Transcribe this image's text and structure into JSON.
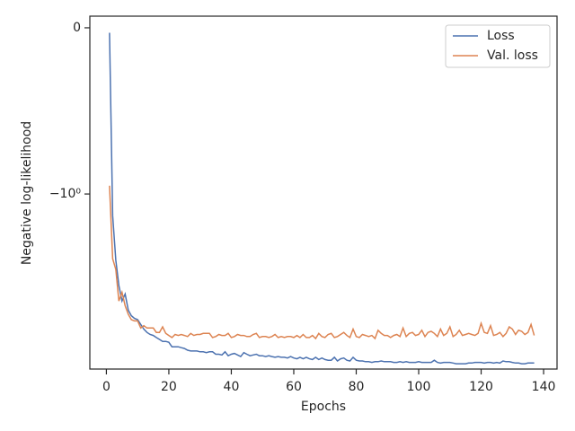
{
  "chart_data": {
    "type": "line",
    "x_label": "Epochs",
    "y_label": "Negative log-likelihood",
    "yscale": "symlog",
    "linthresh": 1,
    "xlim": [
      -5.3,
      144.3
    ],
    "ylim": [
      0.07,
      -11.3
    ],
    "xticks": [
      0,
      20,
      40,
      60,
      80,
      100,
      120,
      140
    ],
    "yticks": [
      0,
      {
        "value": -1,
        "label": "−10⁰"
      }
    ],
    "legend": "upper right",
    "x": [
      1,
      2,
      3,
      4,
      5,
      6,
      7,
      8,
      9,
      10,
      11,
      12,
      13,
      14,
      15,
      16,
      17,
      18,
      19,
      20,
      21,
      22,
      23,
      24,
      25,
      26,
      27,
      28,
      29,
      30,
      31,
      32,
      33,
      34,
      35,
      36,
      37,
      38,
      39,
      40,
      41,
      42,
      43,
      44,
      45,
      46,
      47,
      48,
      49,
      50,
      51,
      52,
      53,
      54,
      55,
      56,
      57,
      58,
      59,
      60,
      61,
      62,
      63,
      64,
      65,
      66,
      67,
      68,
      69,
      70,
      71,
      72,
      73,
      74,
      75,
      76,
      77,
      78,
      79,
      80,
      81,
      82,
      83,
      84,
      85,
      86,
      87,
      88,
      89,
      90,
      91,
      92,
      93,
      94,
      95,
      96,
      97,
      98,
      99,
      100,
      101,
      102,
      103,
      104,
      105,
      106,
      107,
      108,
      109,
      110,
      111,
      112,
      113,
      114,
      115,
      116,
      117,
      118,
      119,
      120,
      121,
      122,
      123,
      124,
      125,
      126,
      127,
      128,
      129,
      130,
      131,
      132,
      133,
      134,
      135,
      136,
      137
    ],
    "series": [
      {
        "name": "Loss",
        "color": "#4c72b0",
        "values": [
          -0.03,
          -1.35,
          -2.5,
          -3.55,
          -4.4,
          -4.0,
          -5.0,
          -5.4,
          -5.6,
          -5.7,
          -6.1,
          -6.5,
          -6.8,
          -7.0,
          -7.1,
          -7.3,
          -7.5,
          -7.7,
          -7.7,
          -7.8,
          -8.3,
          -8.3,
          -8.3,
          -8.4,
          -8.5,
          -8.7,
          -8.8,
          -8.8,
          -8.8,
          -8.9,
          -8.9,
          -9.0,
          -8.9,
          -8.9,
          -9.2,
          -9.2,
          -9.3,
          -8.9,
          -9.4,
          -9.2,
          -9.1,
          -9.3,
          -9.5,
          -9.0,
          -9.2,
          -9.4,
          -9.3,
          -9.2,
          -9.4,
          -9.4,
          -9.5,
          -9.4,
          -9.5,
          -9.6,
          -9.5,
          -9.6,
          -9.6,
          -9.7,
          -9.5,
          -9.7,
          -9.8,
          -9.6,
          -9.8,
          -9.6,
          -9.8,
          -9.9,
          -9.6,
          -9.9,
          -9.7,
          -9.9,
          -10.0,
          -10.0,
          -9.6,
          -10.1,
          -9.8,
          -9.7,
          -10.0,
          -10.1,
          -9.6,
          -10.0,
          -10.1,
          -10.1,
          -10.2,
          -10.2,
          -10.3,
          -10.2,
          -10.2,
          -10.1,
          -10.2,
          -10.2,
          -10.2,
          -10.3,
          -10.3,
          -10.2,
          -10.3,
          -10.2,
          -10.3,
          -10.3,
          -10.3,
          -10.2,
          -10.3,
          -10.3,
          -10.3,
          -10.3,
          -10.0,
          -10.3,
          -10.4,
          -10.3,
          -10.3,
          -10.3,
          -10.4,
          -10.5,
          -10.5,
          -10.5,
          -10.5,
          -10.4,
          -10.4,
          -10.3,
          -10.3,
          -10.3,
          -10.4,
          -10.3,
          -10.3,
          -10.4,
          -10.3,
          -10.4,
          -10.1,
          -10.2,
          -10.2,
          -10.3,
          -10.4,
          -10.4,
          -10.5,
          -10.5,
          -10.4,
          -10.4,
          -10.4
        ]
      },
      {
        "name": "Val. loss",
        "color": "#dd8452",
        "values": [
          -0.95,
          -2.45,
          -2.84,
          -4.4,
          -3.9,
          -4.7,
          -5.3,
          -5.7,
          -5.8,
          -5.8,
          -6.4,
          -6.2,
          -6.4,
          -6.4,
          -6.4,
          -6.8,
          -6.8,
          -6.3,
          -6.9,
          -7.1,
          -7.3,
          -7.0,
          -7.1,
          -7.0,
          -7.1,
          -7.2,
          -6.9,
          -7.1,
          -7.0,
          -7.0,
          -6.9,
          -6.9,
          -6.9,
          -7.3,
          -7.2,
          -7.0,
          -7.1,
          -7.1,
          -6.9,
          -7.3,
          -7.2,
          -7.0,
          -7.1,
          -7.1,
          -7.2,
          -7.2,
          -7.0,
          -6.9,
          -7.3,
          -7.2,
          -7.2,
          -7.3,
          -7.2,
          -7.0,
          -7.3,
          -7.2,
          -7.3,
          -7.2,
          -7.2,
          -7.3,
          -7.1,
          -7.3,
          -7.0,
          -7.3,
          -7.3,
          -7.1,
          -7.4,
          -6.9,
          -7.2,
          -7.3,
          -7.0,
          -6.9,
          -7.3,
          -7.2,
          -7.0,
          -6.8,
          -7.1,
          -7.3,
          -6.5,
          -7.2,
          -7.3,
          -7.0,
          -7.1,
          -7.2,
          -7.1,
          -7.4,
          -6.6,
          -6.9,
          -7.1,
          -7.1,
          -7.3,
          -7.1,
          -7.0,
          -7.2,
          -6.4,
          -7.2,
          -6.9,
          -6.8,
          -7.1,
          -7.0,
          -6.6,
          -7.2,
          -6.8,
          -6.7,
          -6.9,
          -7.2,
          -6.5,
          -7.1,
          -6.9,
          -6.3,
          -7.2,
          -7.0,
          -6.6,
          -7.1,
          -7.0,
          -6.9,
          -7.0,
          -7.1,
          -6.9,
          -6.0,
          -6.8,
          -6.9,
          -6.2,
          -7.1,
          -7.0,
          -6.8,
          -7.2,
          -6.9,
          -6.3,
          -6.5,
          -7.0,
          -6.6,
          -6.7,
          -7.0,
          -6.8,
          -6.1,
          -7.1
        ]
      }
    ]
  }
}
